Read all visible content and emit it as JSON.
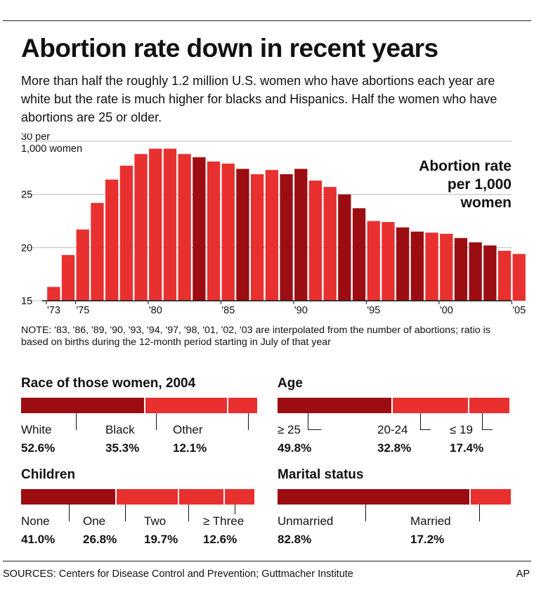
{
  "title": "Abortion rate down in recent years",
  "subtitle": "More than half the roughly 1.2 million U.S. women who have abortions each year are white but the rate is much higher for blacks and Hispanics. Half the women who have abortions are 25 or older.",
  "colors": {
    "bright": "#e8302f",
    "dark": "#9c0d12",
    "grid": "#bbbbbb",
    "text": "#111111"
  },
  "chart_data": {
    "type": "bar",
    "title": "Abortion rate per 1,000 women",
    "title_lines": [
      "Abortion rate",
      "per 1,000",
      "women"
    ],
    "y_unit": "per 1,000 women",
    "ylim": [
      15,
      30
    ],
    "y_ticks": [
      {
        "value": 30,
        "label": "30 per",
        "sub": "1,000 women"
      },
      {
        "value": 25,
        "label": "25"
      },
      {
        "value": 20,
        "label": "20"
      },
      {
        "value": 15,
        "label": "15"
      }
    ],
    "grid": true,
    "x_ticks": [
      {
        "year": 1973,
        "label": "'73"
      },
      {
        "year": 1975,
        "label": "'75"
      },
      {
        "year": 1980,
        "label": "'80"
      },
      {
        "year": 1985,
        "label": "'85"
      },
      {
        "year": 1990,
        "label": "'90"
      },
      {
        "year": 1995,
        "label": "'95"
      },
      {
        "year": 2000,
        "label": "'00"
      },
      {
        "year": 2005,
        "label": "'05"
      }
    ],
    "x": [
      1973,
      1974,
      1975,
      1976,
      1977,
      1978,
      1979,
      1980,
      1981,
      1982,
      1983,
      1984,
      1985,
      1986,
      1987,
      1988,
      1989,
      1990,
      1991,
      1992,
      1993,
      1994,
      1995,
      1996,
      1997,
      1998,
      1999,
      2000,
      2001,
      2002,
      2003,
      2004,
      2005
    ],
    "values": [
      16.3,
      19.3,
      21.7,
      24.2,
      26.4,
      27.7,
      28.8,
      29.3,
      29.3,
      28.8,
      28.5,
      28.1,
      27.9,
      27.4,
      26.9,
      27.3,
      26.9,
      27.4,
      26.3,
      25.7,
      25.0,
      23.7,
      22.5,
      22.4,
      21.9,
      21.5,
      21.4,
      21.3,
      20.9,
      20.5,
      20.2,
      19.7,
      19.4
    ],
    "interpolated_years": [
      1983,
      1986,
      1989,
      1990,
      1993,
      1994,
      1997,
      1998,
      2001,
      2002,
      2003
    ]
  },
  "note": "NOTE: '83, '86, '89, '90, '93, '94, '97, '98, '01, '02, '03 are interpolated from the number of abortions; ratio is based on births during the 12-month period starting in July of that year",
  "breakdowns": {
    "race": {
      "title": "Race of those women, 2004",
      "items": [
        {
          "label": "White",
          "pct": "52.6%",
          "value": 52.6,
          "color": "#9c0d12"
        },
        {
          "label": "Black",
          "pct": "35.3%",
          "value": 35.3,
          "color": "#e8302f"
        },
        {
          "label": "Other",
          "pct": "12.1%",
          "value": 12.1,
          "color": "#e8302f"
        }
      ]
    },
    "age": {
      "title": "Age",
      "items": [
        {
          "label": "≥ 25",
          "pct": "49.8%",
          "value": 49.8,
          "color": "#9c0d12"
        },
        {
          "label": "20-24",
          "pct": "32.8%",
          "value": 32.8,
          "color": "#e8302f"
        },
        {
          "label": "≤ 19",
          "pct": "17.4%",
          "value": 17.4,
          "color": "#e8302f"
        }
      ]
    },
    "children": {
      "title": "Children",
      "items": [
        {
          "label": "None",
          "pct": "41.0%",
          "value": 41.0,
          "color": "#9c0d12"
        },
        {
          "label": "One",
          "pct": "26.8%",
          "value": 26.8,
          "color": "#e8302f"
        },
        {
          "label": "Two",
          "pct": "19.7%",
          "value": 19.7,
          "color": "#e8302f"
        },
        {
          "label": "≥ Three",
          "pct": "12.6%",
          "value": 12.6,
          "color": "#e8302f"
        }
      ]
    },
    "marital": {
      "title": "Marital status",
      "items": [
        {
          "label": "Unmarried",
          "pct": "82.8%",
          "value": 82.8,
          "color": "#9c0d12"
        },
        {
          "label": "Married",
          "pct": "17.2%",
          "value": 17.2,
          "color": "#e8302f"
        }
      ]
    }
  },
  "sources": "SOURCES: Centers for Disease Control and Prevention; Guttmacher Institute",
  "credit": "AP"
}
